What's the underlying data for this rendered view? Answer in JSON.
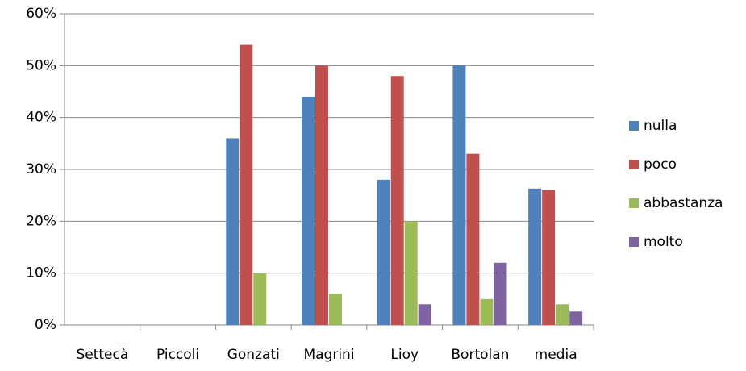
{
  "chart_data": {
    "type": "bar",
    "categories": [
      "Settecà",
      "Piccoli",
      "Gonzati",
      "Magrini",
      "Lioy",
      "Bortolan",
      "media"
    ],
    "series": [
      {
        "name": "nulla",
        "color": "#4f81bd",
        "values": [
          0,
          0,
          36,
          44,
          28,
          50,
          26.3
        ]
      },
      {
        "name": "poco",
        "color": "#c0504d",
        "values": [
          0,
          0,
          54,
          50,
          48,
          33,
          26
        ]
      },
      {
        "name": "abbastanza",
        "color": "#9bbb59",
        "values": [
          0,
          0,
          10,
          6,
          20,
          5,
          4
        ]
      },
      {
        "name": "molto",
        "color": "#8064a2",
        "values": [
          0,
          0,
          0,
          0,
          4,
          12,
          2.6
        ]
      }
    ],
    "ylim": [
      0,
      60
    ],
    "yticks": [
      {
        "value": 0,
        "label": "0%"
      },
      {
        "value": 10,
        "label": "10%"
      },
      {
        "value": 20,
        "label": "20%"
      },
      {
        "value": 30,
        "label": "30%"
      },
      {
        "value": 40,
        "label": "40%"
      },
      {
        "value": 50,
        "label": "50%"
      },
      {
        "value": 60,
        "label": "60%"
      }
    ],
    "grid": true,
    "legend": "right"
  }
}
